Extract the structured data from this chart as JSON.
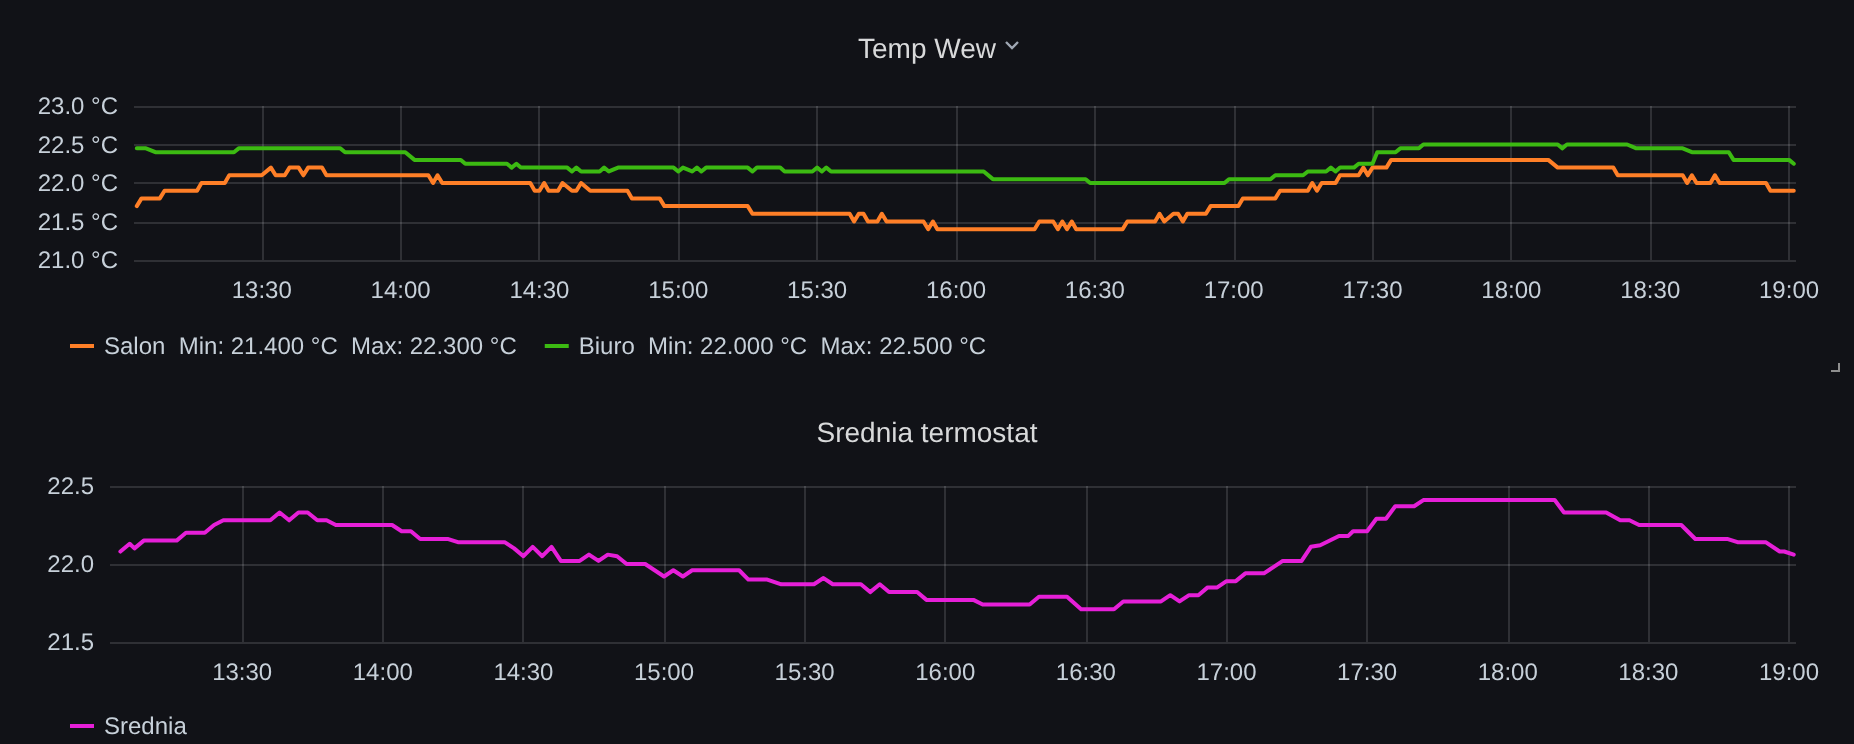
{
  "chart_data": [
    {
      "type": "line",
      "title": "Temp Wew",
      "xlim": [
        13.04,
        19.025
      ],
      "xticks": [
        {
          "value": 13.5,
          "label": "13:30"
        },
        {
          "value": 14,
          "label": "14:00"
        },
        {
          "value": 14.5,
          "label": "14:30"
        },
        {
          "value": 15,
          "label": "15:00"
        },
        {
          "value": 15.5,
          "label": "15:30"
        },
        {
          "value": 16,
          "label": "16:00"
        },
        {
          "value": 16.5,
          "label": "16:30"
        },
        {
          "value": 17,
          "label": "17:00"
        },
        {
          "value": 17.5,
          "label": "17:30"
        },
        {
          "value": 18,
          "label": "18:00"
        },
        {
          "value": 18.5,
          "label": "18:30"
        },
        {
          "value": 19,
          "label": "19:00"
        }
      ],
      "ylim": [
        21,
        23
      ],
      "yticks": [
        {
          "value": 21,
          "label": "21.0 °C"
        },
        {
          "value": 21.5,
          "label": "21.5 °C"
        },
        {
          "value": 22,
          "label": "22.0 °C"
        },
        {
          "value": 22.5,
          "label": "22.5 °C"
        },
        {
          "value": 23,
          "label": "23.0 °C"
        }
      ],
      "grid": true,
      "legend": "bottom",
      "marker": "none",
      "line_style": "solid",
      "series": [
        {
          "name": "Salon  Min: 21.400 °C  Max: 22.300 °C",
          "color": "#ff7f27",
          "x": [
            13.05,
            13.067,
            13.133,
            13.15,
            13.267,
            13.283,
            13.367,
            13.383,
            13.5,
            13.533,
            13.55,
            13.583,
            13.6,
            13.633,
            13.65,
            13.667,
            13.717,
            13.733,
            14.1,
            14.117,
            14.133,
            14.15,
            14.467,
            14.483,
            14.5,
            14.517,
            14.533,
            14.567,
            14.583,
            14.617,
            14.633,
            14.65,
            14.683,
            14.817,
            14.833,
            14.933,
            14.95,
            15.25,
            15.267,
            15.617,
            15.633,
            15.65,
            15.667,
            15.683,
            15.717,
            15.733,
            15.75,
            15.883,
            15.9,
            15.917,
            15.933,
            16.283,
            16.3,
            16.35,
            16.367,
            16.383,
            16.4,
            16.417,
            16.433,
            16.6,
            16.617,
            16.717,
            16.733,
            16.75,
            16.783,
            16.8,
            16.817,
            16.833,
            16.9,
            16.917,
            17.017,
            17.033,
            17.15,
            17.167,
            17.267,
            17.283,
            17.3,
            17.317,
            17.367,
            17.383,
            17.45,
            17.467,
            17.483,
            17.5,
            17.55,
            17.567,
            18.133,
            18.167,
            18.367,
            18.383,
            18.617,
            18.633,
            18.65,
            18.667,
            18.717,
            18.733,
            18.75,
            18.917,
            18.933,
            19.017
          ],
          "values": [
            21.7,
            21.8,
            21.8,
            21.9,
            21.9,
            22.0,
            22.0,
            22.1,
            22.1,
            22.2,
            22.1,
            22.1,
            22.2,
            22.2,
            22.1,
            22.2,
            22.2,
            22.1,
            22.1,
            22.0,
            22.1,
            22.0,
            22.0,
            21.9,
            21.9,
            22.0,
            21.9,
            21.9,
            22.0,
            21.9,
            21.9,
            22.0,
            21.9,
            21.9,
            21.8,
            21.8,
            21.7,
            21.7,
            21.6,
            21.6,
            21.5,
            21.6,
            21.6,
            21.5,
            21.5,
            21.6,
            21.5,
            21.5,
            21.4,
            21.5,
            21.4,
            21.4,
            21.5,
            21.5,
            21.4,
            21.5,
            21.4,
            21.5,
            21.4,
            21.4,
            21.5,
            21.5,
            21.6,
            21.5,
            21.6,
            21.6,
            21.5,
            21.6,
            21.6,
            21.7,
            21.7,
            21.8,
            21.8,
            21.9,
            21.9,
            22.0,
            21.9,
            22.0,
            22.0,
            22.1,
            22.1,
            22.2,
            22.1,
            22.2,
            22.2,
            22.3,
            22.3,
            22.2,
            22.2,
            22.1,
            22.1,
            22.0,
            22.1,
            22.0,
            22.0,
            22.1,
            22.0,
            22.0,
            21.9,
            21.9
          ]
        },
        {
          "name": "Biuro  Min: 22.000 °C  Max: 22.500 °C",
          "color": "#3cba12",
          "x": [
            13.05,
            13.083,
            13.117,
            13.4,
            13.417,
            13.783,
            13.8,
            14.017,
            14.05,
            14.217,
            14.233,
            14.383,
            14.4,
            14.417,
            14.433,
            14.6,
            14.617,
            14.633,
            14.65,
            14.717,
            14.733,
            14.75,
            14.783,
            14.983,
            15.0,
            15.017,
            15.05,
            15.067,
            15.083,
            15.1,
            15.25,
            15.267,
            15.283,
            15.367,
            15.383,
            15.483,
            15.5,
            15.517,
            15.533,
            15.55,
            16.1,
            16.133,
            16.467,
            16.483,
            16.967,
            16.983,
            17.133,
            17.15,
            17.25,
            17.267,
            17.333,
            17.35,
            17.367,
            17.383,
            17.433,
            17.45,
            17.5,
            17.517,
            17.583,
            17.6,
            17.667,
            17.683,
            18.167,
            18.183,
            18.2,
            18.417,
            18.45,
            18.617,
            18.65,
            18.783,
            18.8,
            19.0,
            19.017
          ],
          "values": [
            22.45,
            22.45,
            22.4,
            22.4,
            22.45,
            22.45,
            22.4,
            22.4,
            22.3,
            22.3,
            22.25,
            22.25,
            22.2,
            22.25,
            22.2,
            22.2,
            22.15,
            22.2,
            22.15,
            22.15,
            22.2,
            22.15,
            22.2,
            22.2,
            22.15,
            22.2,
            22.15,
            22.2,
            22.15,
            22.2,
            22.2,
            22.15,
            22.2,
            22.2,
            22.15,
            22.15,
            22.2,
            22.15,
            22.2,
            22.15,
            22.15,
            22.05,
            22.05,
            22.0,
            22.0,
            22.05,
            22.05,
            22.1,
            22.1,
            22.15,
            22.15,
            22.2,
            22.15,
            22.2,
            22.2,
            22.25,
            22.25,
            22.4,
            22.4,
            22.45,
            22.45,
            22.5,
            22.5,
            22.45,
            22.5,
            22.5,
            22.45,
            22.45,
            22.4,
            22.4,
            22.3,
            22.3,
            22.25
          ]
        }
      ]
    },
    {
      "type": "line",
      "title": "Srednia termostat",
      "xlim": [
        13.03,
        19.025
      ],
      "xticks": [
        {
          "value": 13.5,
          "label": "13:30"
        },
        {
          "value": 14,
          "label": "14:00"
        },
        {
          "value": 14.5,
          "label": "14:30"
        },
        {
          "value": 15,
          "label": "15:00"
        },
        {
          "value": 15.5,
          "label": "15:30"
        },
        {
          "value": 16,
          "label": "16:00"
        },
        {
          "value": 16.5,
          "label": "16:30"
        },
        {
          "value": 17,
          "label": "17:00"
        },
        {
          "value": 17.5,
          "label": "17:30"
        },
        {
          "value": 18,
          "label": "18:00"
        },
        {
          "value": 18.5,
          "label": "18:30"
        },
        {
          "value": 19,
          "label": "19:00"
        }
      ],
      "ylim": [
        21.5,
        22.5
      ],
      "yticks": [
        21.5,
        {
          "value": 22,
          "label": "22.0"
        },
        22.5
      ],
      "grid": true,
      "legend": "bottom",
      "marker": "none",
      "line_style": "solid",
      "series": [
        {
          "name": "Srednia",
          "color": "#e61fd8",
          "x": [
            13.067,
            13.1,
            13.117,
            13.15,
            13.267,
            13.3,
            13.367,
            13.4,
            13.433,
            13.6,
            13.633,
            13.667,
            13.7,
            13.733,
            13.767,
            13.8,
            13.833,
            14.033,
            14.067,
            14.1,
            14.133,
            14.233,
            14.267,
            14.433,
            14.467,
            14.5,
            14.533,
            14.567,
            14.6,
            14.633,
            14.7,
            14.733,
            14.767,
            14.8,
            14.833,
            14.867,
            14.933,
            15.0,
            15.033,
            15.067,
            15.1,
            15.267,
            15.3,
            15.367,
            15.417,
            15.533,
            15.567,
            15.6,
            15.7,
            15.733,
            15.767,
            15.8,
            15.9,
            15.933,
            16.1,
            16.133,
            16.3,
            16.333,
            16.433,
            16.483,
            16.6,
            16.633,
            16.767,
            16.8,
            16.833,
            16.867,
            16.9,
            16.933,
            16.967,
            17.0,
            17.033,
            17.067,
            17.133,
            17.2,
            17.267,
            17.3,
            17.333,
            17.4,
            17.433,
            17.45,
            17.5,
            17.533,
            17.567,
            17.6,
            17.667,
            17.7,
            18.167,
            18.2,
            18.35,
            18.4,
            18.433,
            18.467,
            18.617,
            18.667,
            18.783,
            18.817,
            18.917,
            18.967,
            18.983,
            19.017
          ],
          "values": [
            22.08,
            22.13,
            22.1,
            22.15,
            22.15,
            22.2,
            22.2,
            22.25,
            22.28,
            22.28,
            22.33,
            22.28,
            22.33,
            22.33,
            22.28,
            22.28,
            22.25,
            22.25,
            22.21,
            22.21,
            22.16,
            22.16,
            22.14,
            22.14,
            22.1,
            22.05,
            22.11,
            22.05,
            22.11,
            22.02,
            22.02,
            22.06,
            22.02,
            22.06,
            22.05,
            22.0,
            22.0,
            21.92,
            21.96,
            21.92,
            21.96,
            21.96,
            21.9,
            21.9,
            21.87,
            21.87,
            21.91,
            21.87,
            21.87,
            21.82,
            21.87,
            21.82,
            21.82,
            21.77,
            21.77,
            21.74,
            21.74,
            21.79,
            21.79,
            21.71,
            21.71,
            21.76,
            21.76,
            21.8,
            21.76,
            21.8,
            21.8,
            21.85,
            21.85,
            21.89,
            21.89,
            21.94,
            21.94,
            22.02,
            22.02,
            22.11,
            22.12,
            22.18,
            22.18,
            22.21,
            22.21,
            22.29,
            22.29,
            22.37,
            22.37,
            22.41,
            22.41,
            22.33,
            22.33,
            22.28,
            22.28,
            22.25,
            22.25,
            22.16,
            22.16,
            22.14,
            22.14,
            22.08,
            22.08,
            22.06
          ]
        }
      ]
    }
  ]
}
